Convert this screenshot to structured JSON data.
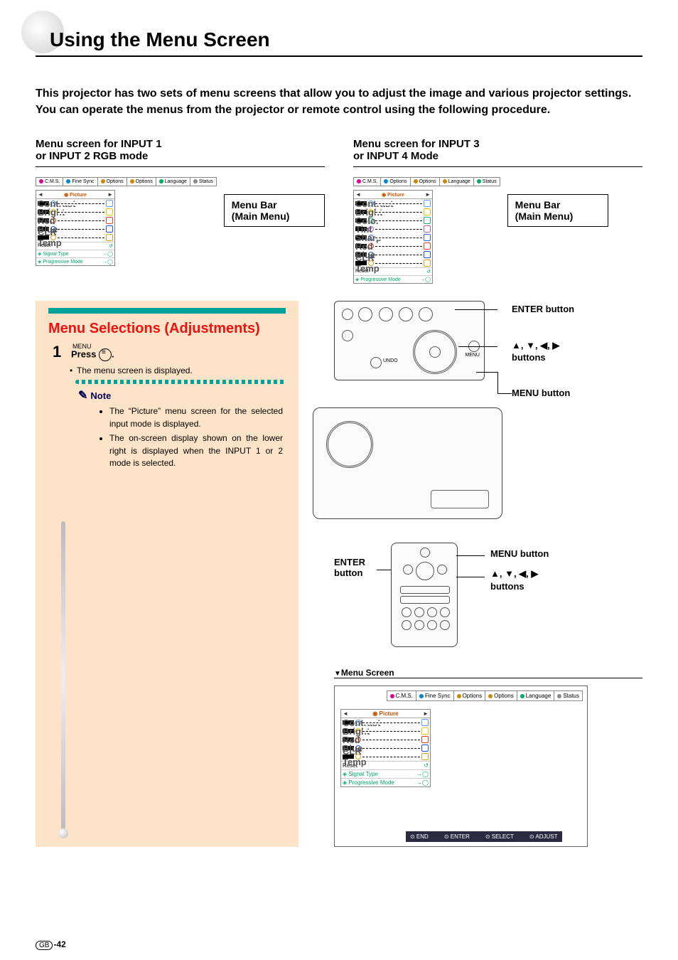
{
  "page_title": "Using the Menu Screen",
  "intro": "This projector has two sets of menu screens that allow you to adjust the image and various projector settings.\nYou can operate the menus from the projector or remote control using the following procedure.",
  "top": {
    "left_title": "Menu screen for INPUT 1\nor INPUT 2 RGB mode",
    "right_title": "Menu screen for INPUT 3\nor INPUT 4 Mode",
    "callout": "Menu Bar\n(Main Menu)"
  },
  "menubar_tabs_full": [
    "C.M.S.",
    "Fine Sync",
    "Options",
    "Options",
    "Language",
    "Status"
  ],
  "menubar_tabs_short": [
    "C.M.S.",
    "Options",
    "Options",
    "Language",
    "Status"
  ],
  "sidepanel_header": "Picture",
  "rows_rgb": [
    "Contrast",
    "Bright",
    "Red",
    "Blue",
    "CLR Temp"
  ],
  "rows_video": [
    "Contrast",
    "Bright",
    "Color",
    "Tint",
    "Sharp",
    "Red",
    "Blue",
    "CLR Temp"
  ],
  "row_colors": {
    "Contrast": "#5aa0ff",
    "Bright": "#f4c200",
    "Color": "#15b06a",
    "Tint": "#b060c0",
    "Sharp": "#3060e0",
    "Red": "#e04020",
    "Blue": "#2050e0",
    "CLR Temp": "#e0a020"
  },
  "reset_label": "Reset",
  "footer_rows": [
    "Signal Type",
    "Progressive Mode"
  ],
  "section_title": "Menu Selections (Adjustments)",
  "step1": {
    "num": "1",
    "pre": "Press",
    "menu_word": "MENU",
    "bullet": "The menu screen is displayed."
  },
  "note_label": "Note",
  "note_items": [
    "The “Picture” menu screen for the selected input mode is displayed.",
    "The on-screen display shown on the lower right is displayed when the INPUT 1 or 2 mode is selected."
  ],
  "labels": {
    "enter": "ENTER button",
    "arrows_pre": "▲, ▼, ◀, ▶",
    "arrows_post": "buttons",
    "menu": "MENU button",
    "enter_stack": "ENTER\nbutton"
  },
  "menuscreen_hdr": "Menu Screen",
  "osd_footer": [
    "END",
    "ENTER",
    "SELECT",
    "ADJUST"
  ],
  "page_number_region": "GB",
  "page_number": "-42"
}
